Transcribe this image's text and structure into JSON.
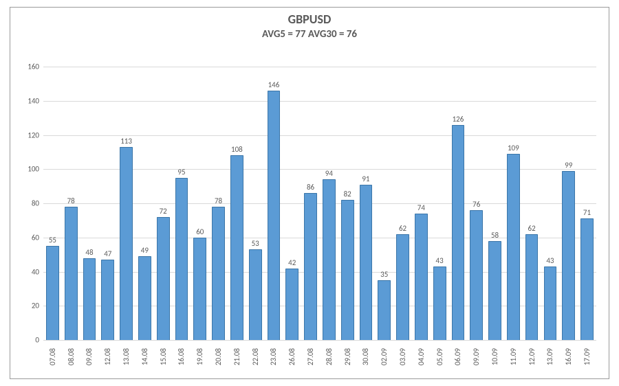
{
  "chart": {
    "type": "bar",
    "title": "GBPUSD",
    "title_fontsize": 18,
    "title_color": "#595959",
    "subtitle": "AVG5 = 77 AVG30 = 76",
    "subtitle_fontsize": 15,
    "subtitle_color": "#595959",
    "background_color": "#ffffff",
    "frame_border_color": "#9a9a9a",
    "grid_color": "#d9d9d9",
    "axis_label_color": "#595959",
    "tick_fontsize": 11,
    "value_label_fontsize": 11,
    "bar_fill": "#5b9bd5",
    "bar_border": "#3a75a8",
    "bar_width": 0.7,
    "ylim": [
      0,
      160
    ],
    "ytick_step": 20,
    "yticks": [
      0,
      20,
      40,
      60,
      80,
      100,
      120,
      140,
      160
    ],
    "categories": [
      "07.08",
      "08.08",
      "09.08",
      "12.08",
      "13.08",
      "14.08",
      "15.08",
      "16.08",
      "19.08",
      "20.08",
      "21.08",
      "22.08",
      "23.08",
      "26.08",
      "27.08",
      "28.08",
      "29.08",
      "30.08",
      "02.09",
      "03.09",
      "04.09",
      "05.09",
      "06.09",
      "09.09",
      "10.09",
      "11.09",
      "12.09",
      "13.09",
      "16.09",
      "17.09"
    ],
    "values": [
      55,
      78,
      48,
      47,
      113,
      49,
      72,
      95,
      60,
      78,
      108,
      53,
      146,
      42,
      86,
      94,
      82,
      91,
      35,
      62,
      74,
      43,
      126,
      76,
      58,
      109,
      62,
      43,
      99,
      71
    ]
  }
}
